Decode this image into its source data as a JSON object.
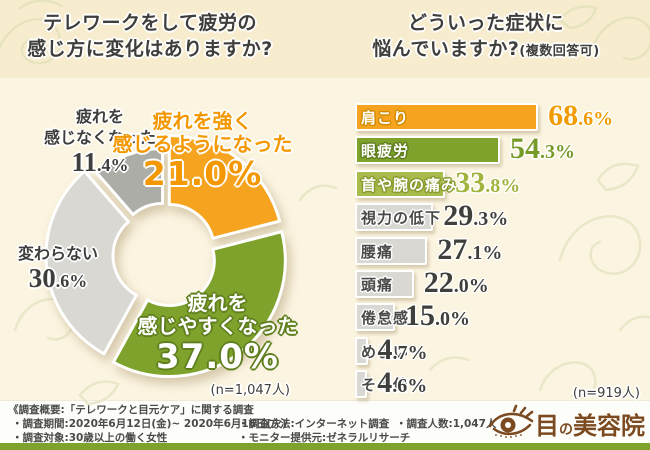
{
  "header": {
    "left_title": {
      "line1": "テレワークをして疲労の",
      "line2": "感じ方に変化はありますか?"
    },
    "right_title": {
      "line1": "どういった症状に",
      "line2": "悩んでいますか?",
      "note": "(複数回答可)"
    }
  },
  "chart_data": [
    {
      "type": "pie",
      "title": "テレワークをして疲労の感じ方に変化はありますか?",
      "labels": [
        "疲れを強く感じるようになった",
        "疲れを感じやすくなった",
        "変わらない",
        "疲れを感じなくなった"
      ],
      "values": [
        21.0,
        37.0,
        30.6,
        11.4
      ],
      "colors": [
        "#F6A41F",
        "#7FA22C",
        "#D9D8D3",
        "#ADADA8"
      ],
      "donut": true,
      "start_angle": 0,
      "radii": [
        114,
        116,
        112,
        100
      ],
      "hole_radius": 45,
      "explode": 7,
      "n_label": "(n=1,047人)"
    },
    {
      "type": "bar",
      "orientation": "horizontal",
      "title": "どういった症状に悩んでいますか?(複数回答可)",
      "categories": [
        "肩こり",
        "眼疲労",
        "首や腕の痛み",
        "視力の低下",
        "腰痛",
        "頭痛",
        "倦怠感",
        "めまい",
        "その他"
      ],
      "values": [
        68.6,
        54.3,
        33.8,
        29.3,
        27.1,
        22.0,
        15.0,
        4.7,
        4.6
      ],
      "value_labels": [
        "68.6%",
        "54.3%",
        "33.8%",
        "29.3%",
        "27.1%",
        "22.0%",
        "15.0%",
        "4.7%",
        "4.6%"
      ],
      "xlim": [
        0,
        100
      ],
      "bar_colors": [
        "#F6A41F",
        "#7FA22C",
        "#A9BC4B",
        "#D9D8D3",
        "#D9D8D3",
        "#D9D8D3",
        "#D9D8D3",
        "#D9D8D3",
        "#D9D8D3"
      ],
      "value_colors": [
        "#F09C00",
        "#789B28",
        "#A2B43D",
        "#3F3F3C",
        "#3F3F3C",
        "#3F3F3C",
        "#3F3F3C",
        "#3F3F3C",
        "#3F3F3C"
      ],
      "label_styles": [
        "light",
        "light",
        "light",
        "dark",
        "dark",
        "dark",
        "dark",
        "dark",
        "dark"
      ],
      "label_outline_colors": [
        "#D18B00",
        "#5E7D1E",
        "#879A2F",
        "#FFFFFF",
        "#FFFFFF",
        "#FFFFFF",
        "#FFFFFF",
        "#FFFFFF",
        "#FFFFFF"
      ],
      "n_label": "(n=919人)"
    }
  ],
  "pie_callouts": {
    "stronger": {
      "line1": "疲れを強く",
      "line2": "感じるようになった",
      "pct": "21.0%"
    },
    "easier": {
      "line1": "疲れを",
      "line2": "感じやすくなった",
      "pct": "37.0%"
    },
    "unchanged": {
      "line1": "変わらない",
      "pct_int": "30",
      "pct_dec": ".6%"
    },
    "none": {
      "line1": "疲れを",
      "line2": "感じなくなった",
      "pct_int": "11",
      "pct_dec": ".4%"
    }
  },
  "footer": {
    "line1": "《調査概要:「テレワークと目元ケア」に関する調査",
    "period": "・調査期間:2020年6月12日(金)~ 2020年6月16日(火)",
    "subjects": "・調査対象:30歳以上の働く女性",
    "method": "・調査方法:インターネット調査",
    "monitor": "・モニター提供元:ゼネラルリサーチ",
    "count": "・調査人数:1,047人"
  },
  "logo": {
    "text": "目の美容院",
    "part1": "目",
    "part2": "の",
    "part3": "美容院",
    "color": "#7B4A21"
  },
  "colors": {
    "header_bg": "#F7EDCE",
    "body_bg": "#FBF4E0",
    "footer_bg": "#FDFDFA",
    "strip": "#7FA22C",
    "accent_orange": "#F6A41F",
    "accent_green": "#7FA22C"
  }
}
